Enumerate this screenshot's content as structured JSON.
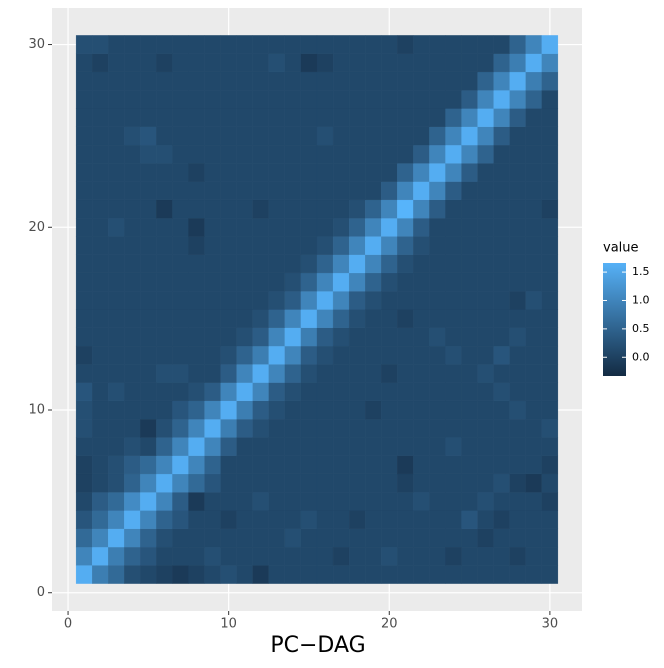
{
  "chart_data": {
    "type": "heatmap",
    "x_label": "PC−DAG",
    "legend_title": "value",
    "x": [
      1,
      2,
      3,
      4,
      5,
      6,
      7,
      8,
      9,
      10,
      11,
      12,
      13,
      14,
      15,
      16,
      17,
      18,
      19,
      20,
      21,
      22,
      23,
      24,
      25,
      26,
      27,
      28,
      29,
      30
    ],
    "y": [
      1,
      2,
      3,
      4,
      5,
      6,
      7,
      8,
      9,
      10,
      11,
      12,
      13,
      14,
      15,
      16,
      17,
      18,
      19,
      20,
      21,
      22,
      23,
      24,
      25,
      26,
      27,
      28,
      29,
      30
    ],
    "z": [
      [
        1.6,
        0.9,
        0.6,
        0.2,
        0.1,
        0.0,
        -0.1,
        0.0,
        0.1,
        0.2,
        0.1,
        -0.1,
        0.1,
        0.1,
        0.1,
        0.1,
        0.1,
        0.1,
        0.1,
        0.1,
        0.1,
        0.1,
        0.1,
        0.1,
        0.1,
        0.1,
        0.1,
        0.1,
        0.1,
        0.1
      ],
      [
        1.0,
        1.6,
        0.9,
        0.5,
        0.3,
        0.1,
        0.1,
        0.1,
        0.2,
        0.1,
        0.1,
        0.1,
        0.1,
        0.1,
        0.1,
        0.1,
        0.0,
        0.1,
        0.1,
        0.2,
        0.1,
        0.1,
        0.1,
        0.0,
        0.1,
        0.1,
        0.1,
        0.0,
        0.1,
        0.1
      ],
      [
        0.6,
        1.0,
        1.6,
        1.0,
        0.5,
        0.2,
        0.1,
        0.1,
        0.1,
        0.1,
        0.1,
        0.1,
        0.1,
        0.2,
        0.1,
        0.1,
        0.1,
        0.1,
        0.1,
        0.1,
        0.1,
        0.1,
        0.1,
        0.1,
        0.1,
        0.0,
        0.1,
        0.1,
        0.1,
        0.1
      ],
      [
        0.3,
        0.6,
        1.0,
        1.6,
        1.0,
        0.5,
        0.3,
        0.1,
        0.1,
        0.0,
        0.1,
        0.1,
        0.1,
        0.1,
        0.2,
        0.1,
        0.1,
        0.0,
        0.1,
        0.1,
        0.1,
        0.1,
        0.1,
        0.1,
        0.3,
        0.1,
        0.0,
        0.1,
        0.1,
        0.1
      ],
      [
        0.1,
        0.4,
        0.6,
        1.1,
        1.6,
        1.0,
        0.4,
        -0.1,
        0.1,
        0.1,
        0.1,
        0.2,
        0.1,
        0.1,
        0.1,
        0.1,
        0.1,
        0.1,
        0.1,
        0.1,
        0.1,
        0.2,
        0.1,
        0.1,
        0.1,
        0.2,
        0.1,
        0.1,
        0.1,
        0.0
      ],
      [
        0.0,
        0.1,
        0.2,
        0.5,
        1.0,
        1.6,
        1.0,
        0.6,
        0.3,
        0.1,
        0.1,
        0.1,
        0.1,
        0.1,
        0.1,
        0.1,
        0.1,
        0.1,
        0.1,
        0.1,
        0.0,
        0.1,
        0.1,
        0.1,
        0.1,
        0.1,
        0.2,
        0.0,
        -0.1,
        0.1
      ],
      [
        0.0,
        0.1,
        0.2,
        0.4,
        0.6,
        1.0,
        1.6,
        1.0,
        0.5,
        0.1,
        0.1,
        0.1,
        0.1,
        0.1,
        0.1,
        0.1,
        0.1,
        0.1,
        0.1,
        0.1,
        -0.1,
        0.1,
        0.1,
        0.1,
        0.1,
        0.1,
        0.1,
        0.1,
        0.1,
        0.0
      ],
      [
        0.1,
        0.1,
        0.1,
        0.2,
        0.1,
        0.5,
        1.0,
        1.6,
        1.0,
        0.4,
        0.1,
        0.1,
        0.1,
        0.1,
        0.1,
        0.1,
        0.1,
        0.1,
        0.1,
        0.1,
        0.1,
        0.1,
        0.1,
        0.2,
        0.1,
        0.1,
        0.1,
        0.1,
        0.1,
        0.1
      ],
      [
        0.2,
        0.1,
        0.1,
        0.1,
        -0.1,
        0.2,
        0.5,
        1.0,
        1.6,
        0.9,
        0.4,
        0.2,
        0.1,
        0.1,
        0.1,
        0.1,
        0.1,
        0.1,
        0.1,
        0.1,
        0.1,
        0.1,
        0.1,
        0.1,
        0.1,
        0.1,
        0.1,
        0.1,
        0.1,
        0.2
      ],
      [
        0.2,
        0.1,
        0.1,
        0.1,
        0.1,
        0.1,
        0.3,
        0.5,
        1.0,
        1.6,
        0.9,
        0.4,
        0.2,
        0.1,
        0.1,
        0.1,
        0.1,
        0.1,
        0.0,
        0.1,
        0.1,
        0.1,
        0.1,
        0.1,
        0.1,
        0.1,
        0.1,
        0.2,
        0.1,
        0.1
      ],
      [
        0.3,
        0.1,
        0.2,
        0.1,
        0.1,
        0.1,
        0.1,
        0.2,
        0.4,
        1.0,
        1.6,
        1.0,
        0.4,
        0.2,
        0.1,
        0.1,
        0.1,
        0.1,
        0.1,
        0.1,
        0.1,
        0.1,
        0.1,
        0.1,
        0.1,
        0.1,
        0.2,
        0.1,
        0.1,
        0.1
      ],
      [
        0.1,
        0.1,
        0.1,
        0.1,
        0.1,
        0.2,
        0.2,
        0.1,
        0.1,
        0.4,
        1.0,
        1.6,
        1.0,
        0.5,
        0.2,
        0.1,
        0.1,
        0.1,
        0.1,
        0.0,
        0.1,
        0.1,
        0.1,
        0.1,
        0.1,
        0.2,
        0.1,
        0.1,
        0.1,
        0.1
      ],
      [
        0.0,
        0.1,
        0.1,
        0.1,
        0.1,
        0.1,
        0.1,
        0.1,
        0.1,
        0.2,
        0.5,
        0.9,
        1.6,
        1.0,
        0.4,
        0.2,
        0.1,
        0.1,
        0.1,
        0.1,
        0.1,
        0.1,
        0.1,
        0.2,
        0.1,
        0.1,
        0.3,
        0.1,
        0.1,
        0.1
      ],
      [
        0.1,
        0.1,
        0.1,
        0.1,
        0.1,
        0.1,
        0.1,
        0.1,
        0.1,
        0.1,
        0.2,
        0.4,
        1.0,
        1.6,
        0.9,
        0.4,
        0.2,
        0.1,
        0.1,
        0.1,
        0.1,
        0.1,
        0.2,
        0.1,
        0.1,
        0.1,
        0.1,
        0.2,
        0.1,
        0.1
      ],
      [
        0.1,
        0.1,
        0.1,
        0.1,
        0.1,
        0.1,
        0.1,
        0.1,
        0.1,
        0.1,
        0.1,
        0.2,
        0.5,
        1.0,
        1.6,
        1.0,
        0.5,
        0.2,
        0.1,
        0.1,
        0.0,
        0.1,
        0.1,
        0.1,
        0.1,
        0.1,
        0.1,
        0.1,
        0.1,
        0.1
      ],
      [
        0.1,
        0.1,
        0.1,
        0.1,
        0.1,
        0.1,
        0.1,
        0.1,
        0.1,
        0.1,
        0.1,
        0.1,
        0.2,
        0.4,
        1.0,
        1.6,
        1.0,
        0.4,
        0.2,
        0.1,
        0.1,
        0.1,
        0.1,
        0.1,
        0.1,
        0.1,
        0.1,
        0.0,
        0.2,
        0.1
      ],
      [
        0.1,
        0.1,
        0.1,
        0.1,
        0.1,
        0.1,
        0.1,
        0.1,
        0.1,
        0.1,
        0.1,
        0.1,
        0.1,
        0.2,
        0.5,
        1.0,
        1.6,
        1.0,
        0.5,
        0.2,
        0.1,
        0.1,
        0.1,
        0.1,
        0.1,
        0.1,
        0.1,
        0.1,
        0.1,
        0.1
      ],
      [
        0.1,
        0.1,
        0.1,
        0.1,
        0.1,
        0.1,
        0.1,
        0.1,
        0.1,
        0.1,
        0.1,
        0.1,
        0.1,
        0.1,
        0.2,
        0.5,
        1.0,
        1.6,
        1.0,
        0.5,
        0.2,
        0.1,
        0.1,
        0.1,
        0.1,
        0.1,
        0.1,
        0.1,
        0.1,
        0.1
      ],
      [
        0.1,
        0.1,
        0.1,
        0.1,
        0.1,
        0.1,
        0.1,
        0.0,
        0.1,
        0.1,
        0.1,
        0.1,
        0.1,
        0.1,
        0.1,
        0.2,
        0.5,
        1.0,
        1.6,
        1.0,
        0.5,
        0.2,
        0.1,
        0.1,
        0.1,
        0.1,
        0.1,
        0.1,
        0.1,
        0.1
      ],
      [
        0.1,
        0.1,
        0.2,
        0.1,
        0.1,
        0.1,
        0.1,
        -0.1,
        0.1,
        0.1,
        0.1,
        0.1,
        0.1,
        0.1,
        0.1,
        0.1,
        0.2,
        0.5,
        1.0,
        1.6,
        1.0,
        0.4,
        0.1,
        0.1,
        0.1,
        0.1,
        0.1,
        0.1,
        0.1,
        0.1
      ],
      [
        0.1,
        0.1,
        0.1,
        0.1,
        0.1,
        -0.1,
        0.1,
        0.1,
        0.1,
        0.1,
        0.1,
        0.0,
        0.1,
        0.1,
        0.1,
        0.1,
        0.1,
        0.2,
        0.5,
        1.0,
        1.7,
        1.0,
        0.4,
        0.1,
        0.1,
        0.1,
        0.1,
        0.1,
        0.1,
        0.0
      ],
      [
        0.1,
        0.1,
        0.1,
        0.1,
        0.1,
        0.1,
        0.1,
        0.1,
        0.1,
        0.1,
        0.1,
        0.1,
        0.1,
        0.1,
        0.1,
        0.1,
        0.1,
        0.1,
        0.1,
        0.4,
        1.0,
        1.6,
        1.0,
        0.4,
        0.1,
        0.1,
        0.1,
        0.1,
        0.1,
        0.1
      ],
      [
        0.1,
        0.1,
        0.1,
        0.1,
        0.1,
        0.1,
        0.1,
        0.0,
        0.1,
        0.1,
        0.1,
        0.1,
        0.1,
        0.1,
        0.1,
        0.1,
        0.1,
        0.1,
        0.1,
        0.1,
        0.5,
        1.0,
        1.6,
        1.0,
        0.4,
        0.1,
        0.1,
        0.1,
        0.1,
        0.1
      ],
      [
        0.1,
        0.1,
        0.1,
        0.1,
        0.2,
        0.2,
        0.1,
        0.1,
        0.1,
        0.1,
        0.1,
        0.1,
        0.1,
        0.1,
        0.1,
        0.1,
        0.1,
        0.1,
        0.1,
        0.1,
        0.1,
        0.4,
        1.0,
        1.6,
        1.0,
        0.5,
        0.1,
        0.1,
        0.1,
        0.1
      ],
      [
        0.1,
        0.1,
        0.1,
        0.2,
        0.3,
        0.1,
        0.1,
        0.1,
        0.1,
        0.1,
        0.1,
        0.1,
        0.1,
        0.1,
        0.1,
        0.2,
        0.1,
        0.1,
        0.1,
        0.1,
        0.1,
        0.1,
        0.5,
        1.0,
        1.6,
        1.0,
        0.4,
        0.1,
        0.1,
        0.1
      ],
      [
        0.1,
        0.1,
        0.1,
        0.1,
        0.1,
        0.1,
        0.1,
        0.1,
        0.1,
        0.1,
        0.1,
        0.1,
        0.1,
        0.1,
        0.1,
        0.1,
        0.1,
        0.1,
        0.1,
        0.1,
        0.1,
        0.1,
        0.1,
        0.5,
        1.0,
        1.6,
        1.0,
        0.4,
        0.1,
        0.1
      ],
      [
        0.1,
        0.1,
        0.1,
        0.1,
        0.1,
        0.1,
        0.1,
        0.1,
        0.1,
        0.1,
        0.1,
        0.1,
        0.1,
        0.1,
        0.1,
        0.1,
        0.1,
        0.1,
        0.1,
        0.1,
        0.1,
        0.1,
        0.1,
        0.1,
        0.4,
        1.0,
        1.6,
        1.0,
        0.5,
        0.1
      ],
      [
        0.1,
        0.1,
        0.1,
        0.1,
        0.1,
        0.1,
        0.1,
        0.1,
        0.1,
        0.1,
        0.1,
        0.1,
        0.1,
        0.1,
        0.1,
        0.1,
        0.1,
        0.1,
        0.1,
        0.1,
        0.1,
        0.1,
        0.1,
        0.1,
        0.1,
        0.5,
        1.0,
        1.6,
        0.9,
        0.5
      ],
      [
        0.1,
        0.0,
        0.1,
        0.1,
        0.1,
        0.0,
        0.1,
        0.1,
        0.1,
        0.1,
        0.1,
        0.1,
        0.2,
        0.1,
        -0.1,
        0.0,
        0.1,
        0.1,
        0.1,
        0.1,
        0.1,
        0.1,
        0.1,
        0.1,
        0.1,
        0.1,
        0.5,
        0.9,
        1.6,
        1.0
      ],
      [
        0.2,
        0.2,
        0.1,
        0.1,
        0.1,
        0.1,
        0.1,
        0.1,
        0.1,
        0.1,
        0.1,
        0.1,
        0.1,
        0.1,
        0.1,
        0.1,
        0.1,
        0.1,
        0.1,
        0.1,
        0.0,
        0.1,
        0.1,
        0.1,
        0.1,
        0.1,
        0.1,
        0.5,
        1.0,
        1.6
      ]
    ],
    "xlim": [
      -1,
      32
    ],
    "ylim": [
      -1,
      32
    ],
    "xticks": [
      0,
      10,
      20,
      30
    ],
    "yticks": [
      0,
      10,
      20,
      30
    ],
    "colors": [
      "#132B43",
      "#56B1F7"
    ],
    "color_lim": [
      -0.33,
      1.66
    ],
    "color_ticks": [
      {
        "value": 0,
        "label": "0.0"
      },
      0.5,
      {
        "value": 1,
        "label": "1.0"
      },
      1.5
    ],
    "grid": true
  }
}
